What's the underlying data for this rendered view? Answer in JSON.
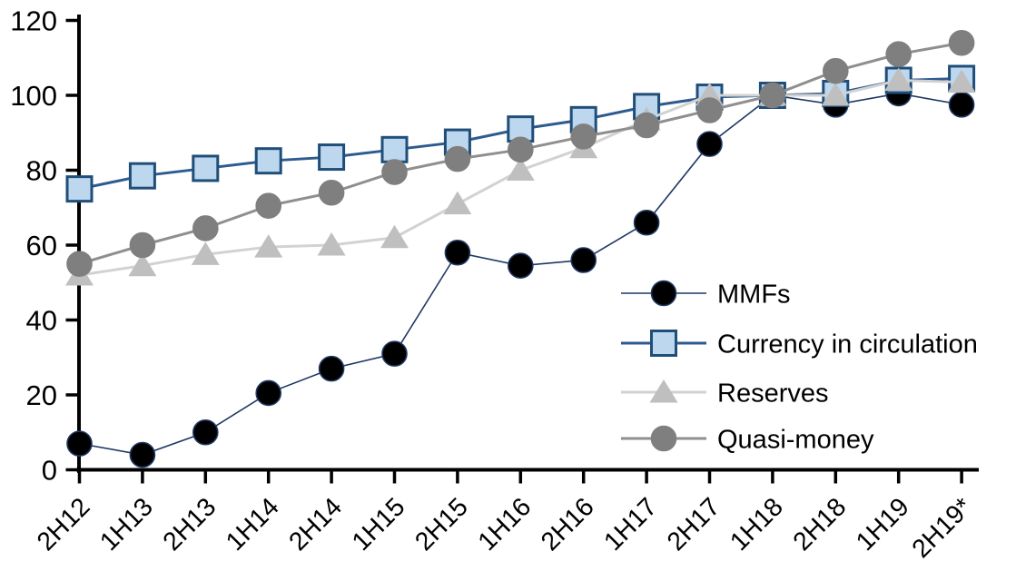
{
  "chart_data": {
    "type": "line",
    "title": "",
    "xlabel": "",
    "ylabel": "",
    "ylim": [
      0,
      120
    ],
    "ytick_step": 20,
    "grid": false,
    "legend_position": "inside-right",
    "axis_color": "#000000",
    "categories": [
      "2H12",
      "1H13",
      "2H13",
      "1H14",
      "2H14",
      "1H15",
      "2H15",
      "1H16",
      "2H16",
      "1H17",
      "2H17",
      "1H18",
      "2H18",
      "1H19",
      "2H19*"
    ],
    "series": [
      {
        "name": "MMFs",
        "marker": "circle",
        "marker_fill": "#000000",
        "marker_stroke": "#1F3864",
        "line_color": "#1F3864",
        "line_width": 1.6,
        "values": [
          7,
          4,
          10,
          20.5,
          27,
          31,
          58,
          54.5,
          56,
          66,
          87,
          100,
          97.5,
          100.5,
          97.5
        ]
      },
      {
        "name": "Currency in circulation",
        "marker": "square",
        "marker_fill": "#BDD7EE",
        "marker_stroke": "#1F4E79",
        "line_color": "#2E5B8F",
        "line_width": 3,
        "values": [
          75,
          78.5,
          80.5,
          82.5,
          83.5,
          85.5,
          87.5,
          91,
          93.5,
          97,
          99.5,
          100,
          100.5,
          104,
          104.5
        ]
      },
      {
        "name": "Reserves",
        "marker": "triangle",
        "marker_fill": "#BFBFBF",
        "marker_stroke": "none",
        "line_color": "#D2D2D2",
        "line_width": 3,
        "values": [
          52,
          54.5,
          57.5,
          59.5,
          60,
          62,
          71,
          80,
          86,
          93.5,
          100,
          100,
          100,
          104,
          103.5
        ]
      },
      {
        "name": "Quasi-money",
        "marker": "circle",
        "marker_fill": "#7F7F7F",
        "marker_stroke": "#7F7F7F",
        "line_color": "#8F8F8F",
        "line_width": 3,
        "values": [
          55,
          60,
          64.5,
          70.5,
          74,
          79.5,
          83,
          85.5,
          89,
          92,
          96,
          100,
          106.5,
          111,
          114
        ]
      }
    ]
  }
}
